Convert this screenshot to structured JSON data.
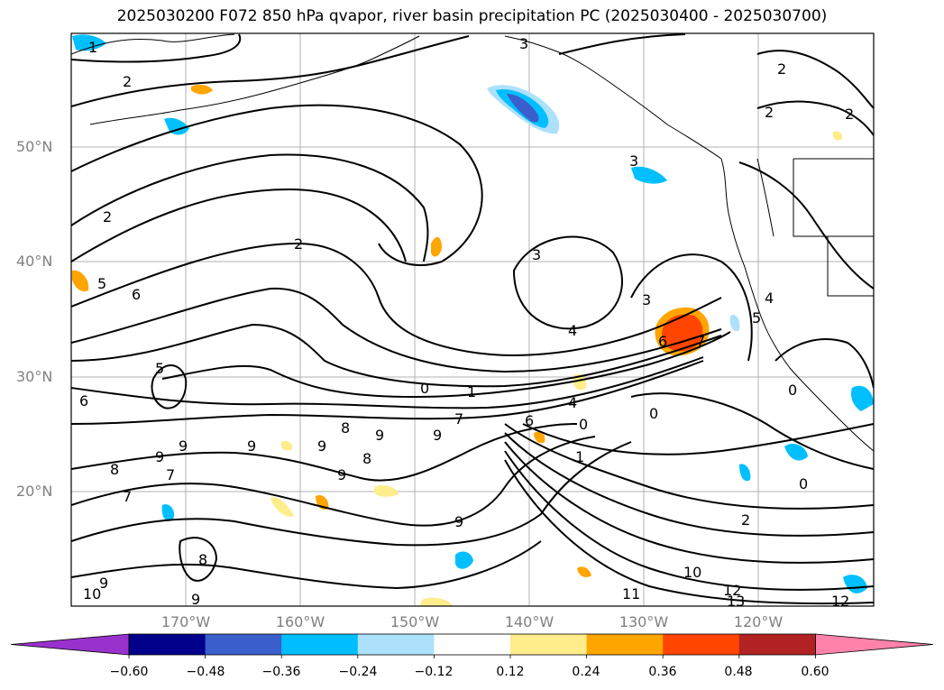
{
  "title": "2025030200 F072 850 hPa qvapor, river basin precipitation PC (2025030400 - 2025030700)",
  "map": {
    "lat_labels": [
      "50°N",
      "40°N",
      "30°N",
      "20°N"
    ],
    "lon_labels": [
      "170°W",
      "160°W",
      "150°W",
      "140°W",
      "130°W",
      "120°W"
    ],
    "contour_labels": [
      "1",
      "2",
      "3",
      "2",
      "2",
      "2",
      "3",
      "2",
      "3",
      "5",
      "6",
      "2",
      "4",
      "5",
      "6",
      "8",
      "0",
      "1",
      "7",
      "6",
      "4",
      "0",
      "1",
      "9",
      "9",
      "9",
      "9",
      "9",
      "8",
      "9",
      "8",
      "7",
      "7",
      "9",
      "9",
      "6",
      "7",
      "9",
      "8",
      "10",
      "9",
      "2",
      "10",
      "11",
      "12",
      "13",
      "12",
      "0",
      "0",
      "0",
      "4",
      "5",
      "3"
    ]
  },
  "colorbar": {
    "tick_labels": [
      "−0.60",
      "−0.48",
      "−0.36",
      "−0.24",
      "−0.12",
      "0.12",
      "0.24",
      "0.36",
      "0.48",
      "0.60"
    ],
    "bounds": [
      -0.72,
      -0.6,
      -0.48,
      -0.36,
      -0.24,
      -0.12,
      0.12,
      0.24,
      0.36,
      0.48,
      0.6,
      0.72
    ],
    "colors": [
      "#9932CC",
      "#00008B",
      "#3A5FCD",
      "#00BFFF",
      "#ADE1FB",
      "#FFFFFF",
      "#FFEC8B",
      "#FFA500",
      "#FF4500",
      "#B22222",
      "#FF82AB"
    ]
  }
}
